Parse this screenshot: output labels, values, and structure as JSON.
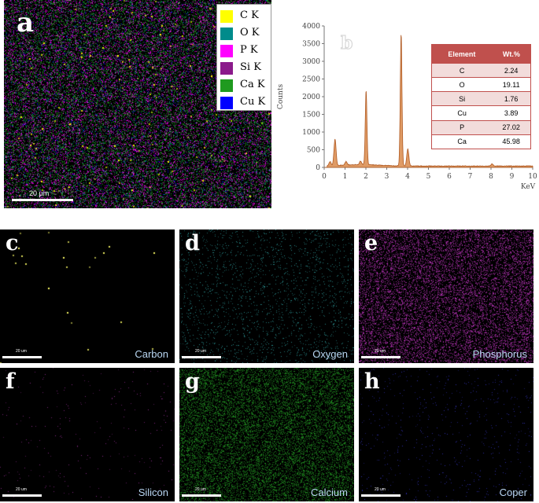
{
  "panel_a": {
    "letter": "a",
    "scale_bar": "20 µm",
    "legend": [
      {
        "label": "C K",
        "color": "#ffff00"
      },
      {
        "label": "O K",
        "color": "#008b8b"
      },
      {
        "label": "P K",
        "color": "#ff00ff"
      },
      {
        "label": "Si K",
        "color": "#8b1a8b"
      },
      {
        "label": "Ca K",
        "color": "#1f9a1f"
      },
      {
        "label": "Cu K",
        "color": "#0000ff"
      }
    ]
  },
  "panel_b": {
    "letter": "b",
    "table": {
      "headers": [
        "Element",
        "Wt.%"
      ],
      "rows": [
        [
          "C",
          "2.24"
        ],
        [
          "O",
          "19.11"
        ],
        [
          "Si",
          "1.76"
        ],
        [
          "Cu",
          "3.89"
        ],
        [
          "P",
          "27.02"
        ],
        [
          "Ca",
          "45.98"
        ]
      ]
    }
  },
  "chart_data": {
    "type": "line",
    "xlabel": "KeV",
    "ylabel": "Counts",
    "xlim": [
      0,
      10
    ],
    "ylim": [
      0,
      4000
    ],
    "x_ticks": [
      "0",
      "1",
      "2",
      "3",
      "4",
      "5",
      "6",
      "7",
      "8",
      "9",
      "10"
    ],
    "y_ticks": [
      "0",
      "500",
      "1000",
      "1500",
      "2000",
      "2500",
      "3000",
      "3500",
      "4000"
    ],
    "series": [
      {
        "peaks": [
          {
            "x": 0.28,
            "y": 120
          },
          {
            "x": 0.52,
            "y": 750
          },
          {
            "x": 1.05,
            "y": 100
          },
          {
            "x": 1.74,
            "y": 100
          },
          {
            "x": 2.01,
            "y": 2100
          },
          {
            "x": 3.69,
            "y": 3750
          },
          {
            "x": 4.01,
            "y": 480
          },
          {
            "x": 8.05,
            "y": 60
          }
        ],
        "color": "#b05a23"
      }
    ]
  },
  "maps": [
    {
      "letter": "c",
      "name": "Carbon",
      "scale": "20 um",
      "color": "#ffff66",
      "density": 0.0006
    },
    {
      "letter": "d",
      "name": "Oxygen",
      "scale": "20 um",
      "color": "#2a8f8f",
      "density": 0.05
    },
    {
      "letter": "e",
      "name": "Phosphorus",
      "scale": "20 um",
      "color": "#b030b0",
      "density": 0.3
    },
    {
      "letter": "f",
      "name": "Silicon",
      "scale": "20 um",
      "color": "#8b2a8b",
      "density": 0.006
    },
    {
      "letter": "g",
      "name": "Calcium",
      "scale": "20 um",
      "color": "#1f8a1f",
      "density": 0.35
    },
    {
      "letter": "h",
      "name": "Coper",
      "scale": "20 um",
      "color": "#3030b0",
      "density": 0.015
    }
  ]
}
